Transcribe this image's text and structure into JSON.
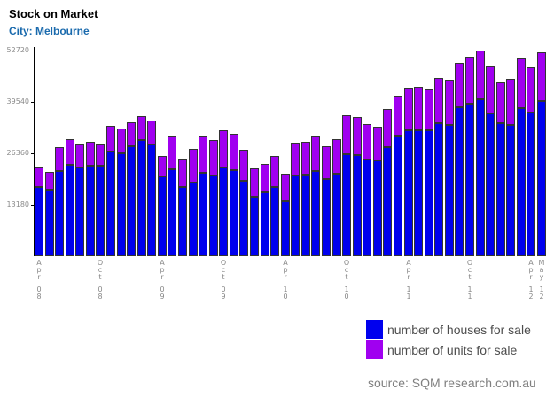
{
  "header": {
    "title": "Stock on Market",
    "subtitle": "City: Melbourne"
  },
  "chart_data": {
    "type": "bar",
    "stacked": true,
    "title": "Stock on Market",
    "subtitle": "City: Melbourne",
    "xlabel": "",
    "ylabel": "",
    "ylim": [
      0,
      52720
    ],
    "yticks": [
      13180,
      26360,
      39540,
      52720
    ],
    "grid": false,
    "legend_position": "bottom-right",
    "categories": [
      "Apr 2008",
      "May 2008",
      "Jun 2008",
      "Jul 2008",
      "Aug 2008",
      "Sep 2008",
      "Oct 2008",
      "Nov 2008",
      "Dec 2008",
      "Jan 2009",
      "Feb 2009",
      "Mar 2009",
      "Apr 2009",
      "May 2009",
      "Jun 2009",
      "Jul 2009",
      "Aug 2009",
      "Sep 2009",
      "Oct 2009",
      "Nov 2009",
      "Dec 2009",
      "Jan 2010",
      "Feb 2010",
      "Mar 2010",
      "Apr 2010",
      "May 2010",
      "Jun 2010",
      "Jul 2010",
      "Aug 2010",
      "Sep 2010",
      "Oct 2010",
      "Nov 2010",
      "Dec 2010",
      "Jan 2011",
      "Feb 2011",
      "Mar 2011",
      "Apr 2011",
      "May 2011",
      "Jun 2011",
      "Jul 2011",
      "Aug 2011",
      "Sep 2011",
      "Oct 2011",
      "Nov 2011",
      "Dec 2011",
      "Jan 2012",
      "Feb 2012",
      "Mar 2012",
      "Apr 2012",
      "May 2012"
    ],
    "series": [
      {
        "name": "number of houses for sale",
        "color": "#0000ee",
        "values": [
          17720,
          17040,
          21750,
          23410,
          22660,
          23110,
          23110,
          26880,
          26430,
          28180,
          29700,
          28700,
          20380,
          22340,
          17720,
          18860,
          21360,
          20610,
          22660,
          22110,
          19320,
          15290,
          16430,
          17790,
          14160,
          20750,
          20970,
          21880,
          19840,
          21200,
          26060,
          25910,
          24770,
          24540,
          27950,
          30840,
          32200,
          32340,
          32340,
          34020,
          33630,
          38180,
          39150,
          40290,
          36520,
          34020,
          33630,
          38020,
          36700,
          39880
        ]
      },
      {
        "name": "number of units for sale",
        "color": "#a000f0",
        "values": [
          5160,
          4550,
          6200,
          6520,
          5900,
          6050,
          5450,
          6590,
          6290,
          6060,
          6200,
          6070,
          5300,
          8630,
          7210,
          8700,
          9470,
          9090,
          9450,
          9320,
          7880,
          7370,
          7360,
          7890,
          6970,
          8340,
          8340,
          9180,
          8500,
          8800,
          10070,
          9700,
          9090,
          8570,
          9840,
          10220,
          10910,
          11130,
          10610,
          11590,
          11590,
          11360,
          12140,
          12430,
          12110,
          10450,
          11820,
          12950,
          11700,
          12390
        ]
      }
    ],
    "x_axis_labels": [
      {
        "text": "Apr 08",
        "index": 0
      },
      {
        "text": "Oct 08",
        "index": 6
      },
      {
        "text": "Apr 09",
        "index": 12
      },
      {
        "text": "Oct 09",
        "index": 18
      },
      {
        "text": "Apr 10",
        "index": 24
      },
      {
        "text": "Oct 10",
        "index": 30
      },
      {
        "text": "Apr 11",
        "index": 36
      },
      {
        "text": "Oct 11",
        "index": 42
      },
      {
        "text": "Apr 12",
        "index": 48
      },
      {
        "text": "May 12",
        "index": 49
      }
    ]
  },
  "legend": {
    "houses_label": "number of houses for sale",
    "units_label": "number of units for sale"
  },
  "source": {
    "text": "source: SQM research.com.au"
  }
}
